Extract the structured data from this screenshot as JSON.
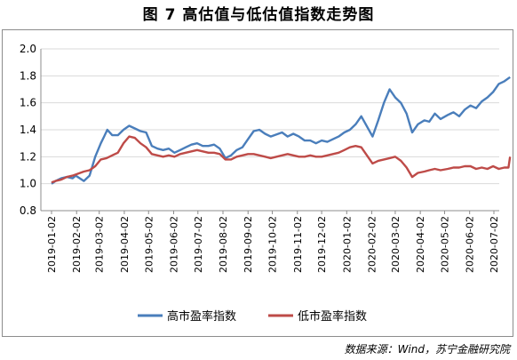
{
  "title": "图 7  高估值与低估值指数走势图",
  "source": "数据来源：Wind，苏宁金融研究院",
  "chart_data": {
    "type": "line",
    "title": "图 7  高估值与低估值指数走势图",
    "ylim": [
      0.8,
      2.0
    ],
    "yticks": [
      "0.8",
      "1.0",
      "1.2",
      "1.4",
      "1.6",
      "1.8",
      "2.0"
    ],
    "grid": true,
    "legend": "bottom",
    "x_start": "2019-01-02",
    "x_end": "2020-07-22",
    "x_ticks": [
      "2019-01-02",
      "2019-02-02",
      "2019-03-02",
      "2019-04-02",
      "2019-05-02",
      "2019-06-02",
      "2019-07-02",
      "2019-08-02",
      "2019-09-02",
      "2019-10-02",
      "2019-11-02",
      "2019-12-02",
      "2020-01-02",
      "2020-02-02",
      "2020-03-02",
      "2020-04-02",
      "2020-05-02",
      "2020-06-02",
      "2020-07-02"
    ],
    "series": [
      {
        "name": "高市盈率指数",
        "color": "#4a7ebb",
        "points": [
          [
            "2019-01-02",
            1.0
          ],
          [
            "2019-01-07",
            1.02
          ],
          [
            "2019-01-14",
            1.04
          ],
          [
            "2019-01-21",
            1.05
          ],
          [
            "2019-01-28",
            1.04
          ],
          [
            "2019-02-01",
            1.06
          ],
          [
            "2019-02-11",
            1.02
          ],
          [
            "2019-02-18",
            1.06
          ],
          [
            "2019-02-25",
            1.2
          ],
          [
            "2019-03-04",
            1.3
          ],
          [
            "2019-03-08",
            1.35
          ],
          [
            "2019-03-12",
            1.4
          ],
          [
            "2019-03-18",
            1.36
          ],
          [
            "2019-03-25",
            1.36
          ],
          [
            "2019-04-01",
            1.4
          ],
          [
            "2019-04-08",
            1.43
          ],
          [
            "2019-04-15",
            1.41
          ],
          [
            "2019-04-22",
            1.39
          ],
          [
            "2019-04-29",
            1.38
          ],
          [
            "2019-05-06",
            1.28
          ],
          [
            "2019-05-13",
            1.26
          ],
          [
            "2019-05-20",
            1.25
          ],
          [
            "2019-05-27",
            1.26
          ],
          [
            "2019-06-03",
            1.23
          ],
          [
            "2019-06-10",
            1.25
          ],
          [
            "2019-06-17",
            1.27
          ],
          [
            "2019-06-24",
            1.29
          ],
          [
            "2019-07-01",
            1.3
          ],
          [
            "2019-07-08",
            1.28
          ],
          [
            "2019-07-15",
            1.28
          ],
          [
            "2019-07-22",
            1.29
          ],
          [
            "2019-07-29",
            1.26
          ],
          [
            "2019-08-05",
            1.19
          ],
          [
            "2019-08-12",
            1.21
          ],
          [
            "2019-08-19",
            1.25
          ],
          [
            "2019-08-26",
            1.27
          ],
          [
            "2019-09-02",
            1.33
          ],
          [
            "2019-09-09",
            1.39
          ],
          [
            "2019-09-16",
            1.4
          ],
          [
            "2019-09-23",
            1.37
          ],
          [
            "2019-09-30",
            1.35
          ],
          [
            "2019-10-14",
            1.38
          ],
          [
            "2019-10-21",
            1.35
          ],
          [
            "2019-10-28",
            1.37
          ],
          [
            "2019-11-04",
            1.35
          ],
          [
            "2019-11-11",
            1.32
          ],
          [
            "2019-11-18",
            1.32
          ],
          [
            "2019-11-25",
            1.3
          ],
          [
            "2019-12-02",
            1.32
          ],
          [
            "2019-12-09",
            1.31
          ],
          [
            "2019-12-16",
            1.33
          ],
          [
            "2019-12-23",
            1.35
          ],
          [
            "2019-12-30",
            1.38
          ],
          [
            "2020-01-06",
            1.4
          ],
          [
            "2020-01-13",
            1.44
          ],
          [
            "2020-01-20",
            1.5
          ],
          [
            "2020-02-03",
            1.35
          ],
          [
            "2020-02-10",
            1.47
          ],
          [
            "2020-02-17",
            1.6
          ],
          [
            "2020-02-24",
            1.7
          ],
          [
            "2020-03-02",
            1.64
          ],
          [
            "2020-03-09",
            1.6
          ],
          [
            "2020-03-16",
            1.52
          ],
          [
            "2020-03-23",
            1.38
          ],
          [
            "2020-03-30",
            1.44
          ],
          [
            "2020-04-07",
            1.47
          ],
          [
            "2020-04-13",
            1.46
          ],
          [
            "2020-04-20",
            1.52
          ],
          [
            "2020-04-27",
            1.48
          ],
          [
            "2020-05-06",
            1.51
          ],
          [
            "2020-05-13",
            1.53
          ],
          [
            "2020-05-20",
            1.5
          ],
          [
            "2020-05-27",
            1.55
          ],
          [
            "2020-06-03",
            1.58
          ],
          [
            "2020-06-10",
            1.56
          ],
          [
            "2020-06-17",
            1.61
          ],
          [
            "2020-06-24",
            1.64
          ],
          [
            "2020-07-01",
            1.68
          ],
          [
            "2020-07-08",
            1.74
          ],
          [
            "2020-07-15",
            1.76
          ],
          [
            "2020-07-22",
            1.79
          ]
        ]
      },
      {
        "name": "低市盈率指数",
        "color": "#be4b48",
        "points": [
          [
            "2019-01-02",
            1.01
          ],
          [
            "2019-01-07",
            1.02
          ],
          [
            "2019-01-14",
            1.03
          ],
          [
            "2019-01-21",
            1.05
          ],
          [
            "2019-01-28",
            1.06
          ],
          [
            "2019-02-11",
            1.09
          ],
          [
            "2019-02-18",
            1.1
          ],
          [
            "2019-02-25",
            1.13
          ],
          [
            "2019-03-04",
            1.18
          ],
          [
            "2019-03-11",
            1.19
          ],
          [
            "2019-03-18",
            1.21
          ],
          [
            "2019-03-25",
            1.23
          ],
          [
            "2019-04-01",
            1.3
          ],
          [
            "2019-04-08",
            1.35
          ],
          [
            "2019-04-15",
            1.34
          ],
          [
            "2019-04-22",
            1.3
          ],
          [
            "2019-04-29",
            1.27
          ],
          [
            "2019-05-06",
            1.22
          ],
          [
            "2019-05-13",
            1.21
          ],
          [
            "2019-05-20",
            1.2
          ],
          [
            "2019-05-27",
            1.21
          ],
          [
            "2019-06-03",
            1.2
          ],
          [
            "2019-06-10",
            1.22
          ],
          [
            "2019-06-17",
            1.23
          ],
          [
            "2019-06-24",
            1.24
          ],
          [
            "2019-07-01",
            1.25
          ],
          [
            "2019-07-08",
            1.24
          ],
          [
            "2019-07-15",
            1.23
          ],
          [
            "2019-07-22",
            1.23
          ],
          [
            "2019-07-29",
            1.22
          ],
          [
            "2019-08-05",
            1.18
          ],
          [
            "2019-08-12",
            1.18
          ],
          [
            "2019-08-19",
            1.2
          ],
          [
            "2019-08-26",
            1.21
          ],
          [
            "2019-09-02",
            1.22
          ],
          [
            "2019-09-09",
            1.22
          ],
          [
            "2019-09-16",
            1.21
          ],
          [
            "2019-09-23",
            1.2
          ],
          [
            "2019-09-30",
            1.19
          ],
          [
            "2019-10-14",
            1.21
          ],
          [
            "2019-10-21",
            1.22
          ],
          [
            "2019-10-28",
            1.21
          ],
          [
            "2019-11-04",
            1.2
          ],
          [
            "2019-11-11",
            1.2
          ],
          [
            "2019-11-18",
            1.21
          ],
          [
            "2019-11-25",
            1.2
          ],
          [
            "2019-12-02",
            1.2
          ],
          [
            "2019-12-09",
            1.21
          ],
          [
            "2019-12-16",
            1.22
          ],
          [
            "2019-12-23",
            1.23
          ],
          [
            "2019-12-30",
            1.25
          ],
          [
            "2020-01-06",
            1.27
          ],
          [
            "2020-01-13",
            1.28
          ],
          [
            "2020-01-20",
            1.27
          ],
          [
            "2020-02-03",
            1.15
          ],
          [
            "2020-02-10",
            1.17
          ],
          [
            "2020-02-17",
            1.18
          ],
          [
            "2020-02-24",
            1.19
          ],
          [
            "2020-03-02",
            1.2
          ],
          [
            "2020-03-09",
            1.17
          ],
          [
            "2020-03-16",
            1.12
          ],
          [
            "2020-03-23",
            1.05
          ],
          [
            "2020-03-30",
            1.08
          ],
          [
            "2020-04-07",
            1.09
          ],
          [
            "2020-04-13",
            1.1
          ],
          [
            "2020-04-20",
            1.11
          ],
          [
            "2020-04-27",
            1.1
          ],
          [
            "2020-05-06",
            1.11
          ],
          [
            "2020-05-13",
            1.12
          ],
          [
            "2020-05-20",
            1.12
          ],
          [
            "2020-05-27",
            1.13
          ],
          [
            "2020-06-03",
            1.13
          ],
          [
            "2020-06-10",
            1.11
          ],
          [
            "2020-06-17",
            1.12
          ],
          [
            "2020-06-24",
            1.11
          ],
          [
            "2020-07-01",
            1.13
          ],
          [
            "2020-07-08",
            1.11
          ],
          [
            "2020-07-15",
            1.12
          ],
          [
            "2020-07-20",
            1.12
          ],
          [
            "2020-07-22",
            1.2
          ]
        ]
      }
    ]
  }
}
